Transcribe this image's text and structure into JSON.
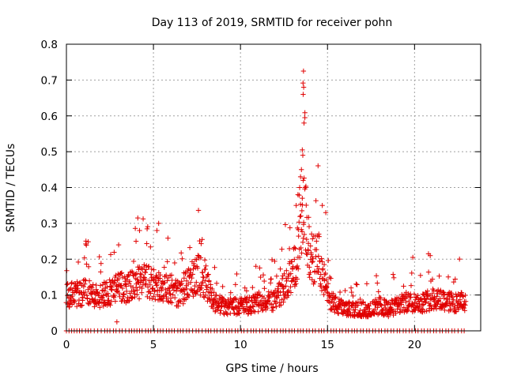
{
  "chart_data": {
    "type": "scatter",
    "title": "Day 113 of 2019, SRMTID for receiver pohn",
    "xlabel": "GPS time / hours",
    "ylabel": "SRMTID / TECUs",
    "xlim": [
      0,
      23.8
    ],
    "ylim": [
      0,
      0.8
    ],
    "x_ticks": [
      0,
      5,
      10,
      15,
      20
    ],
    "x_tick_labels": [
      "0",
      "5",
      "10",
      "15",
      "20"
    ],
    "y_ticks": [
      0,
      0.1,
      0.2,
      0.3,
      0.4,
      0.5,
      0.6,
      0.7,
      0.8
    ],
    "y_tick_labels": [
      "0",
      "0.1",
      "0.2",
      "0.3",
      "0.4",
      "0.5",
      "0.6",
      "0.7",
      "0.8"
    ],
    "grid": true,
    "marker": "+",
    "marker_color": "#e00000",
    "series": [
      {
        "name": "SRMTID",
        "profile_x": [
          0,
          0.5,
          1,
          1.5,
          2,
          2.5,
          3,
          3.5,
          4,
          4.5,
          5,
          5.5,
          6,
          6.5,
          7,
          7.5,
          8,
          8.5,
          9,
          9.5,
          10,
          10.5,
          11,
          11.5,
          12,
          12.5,
          13,
          13.3,
          13.5,
          13.7,
          14,
          14.5,
          15,
          15.5,
          16,
          16.5,
          17,
          17.5,
          18,
          18.5,
          19,
          19.5,
          20,
          20.5,
          21,
          21.5,
          22,
          22.5,
          22.9
        ],
        "profile_y": [
          0.1,
          0.1,
          0.11,
          0.1,
          0.1,
          0.11,
          0.12,
          0.12,
          0.13,
          0.14,
          0.13,
          0.12,
          0.12,
          0.1,
          0.13,
          0.16,
          0.14,
          0.08,
          0.07,
          0.07,
          0.07,
          0.07,
          0.08,
          0.08,
          0.09,
          0.12,
          0.16,
          0.22,
          0.28,
          0.33,
          0.2,
          0.2,
          0.1,
          0.07,
          0.06,
          0.06,
          0.06,
          0.06,
          0.07,
          0.06,
          0.07,
          0.08,
          0.08,
          0.08,
          0.09,
          0.09,
          0.08,
          0.08,
          0.08
        ],
        "highlight_points": [
          [
            13.62,
            0.725
          ],
          [
            13.63,
            0.68
          ],
          [
            13.6,
            0.66
          ],
          [
            13.7,
            0.595
          ],
          [
            13.65,
            0.58
          ],
          [
            13.55,
            0.505
          ],
          [
            13.58,
            0.49
          ],
          [
            13.5,
            0.45
          ],
          [
            13.45,
            0.43
          ],
          [
            13.6,
            0.42
          ],
          [
            13.4,
            0.4
          ],
          [
            13.3,
            0.38
          ],
          [
            13.55,
            0.37
          ],
          [
            13.2,
            0.35
          ],
          [
            4.1,
            0.315
          ],
          [
            4.2,
            0.28
          ],
          [
            5.3,
            0.3
          ],
          [
            5.2,
            0.28
          ],
          [
            14.7,
            0.35
          ],
          [
            14.9,
            0.33
          ],
          [
            7.8,
            0.255
          ],
          [
            4.0,
            0.25
          ],
          [
            14.5,
            0.27
          ],
          [
            20.8,
            0.215
          ],
          [
            20.9,
            0.21
          ],
          [
            3.0,
            0.24
          ],
          [
            19.9,
            0.205
          ],
          [
            2.9,
            0.025
          ]
        ]
      }
    ],
    "zero_points": [
      0.0,
      0.15,
      0.3,
      0.45,
      0.6,
      0.75,
      0.9,
      1.1,
      1.25,
      1.4,
      1.6,
      1.8,
      2.0,
      2.2,
      2.35,
      2.5,
      2.7,
      2.85,
      3.05,
      3.2,
      3.4,
      3.6,
      3.75,
      3.9,
      4.05,
      4.2,
      4.35,
      4.55,
      4.7,
      4.85,
      5.05,
      5.25,
      5.4,
      5.55,
      5.75,
      5.9,
      6.05,
      6.2,
      6.4,
      6.55,
      6.7,
      6.9,
      7.05,
      7.25,
      7.45,
      7.6,
      7.8,
      8.0,
      8.15,
      8.3,
      8.5,
      8.65,
      8.85,
      9.0,
      9.2,
      9.35,
      9.5,
      9.7,
      9.85,
      10.05,
      10.2,
      10.4,
      10.6,
      10.75,
      10.9,
      11.1,
      11.25,
      11.45,
      11.6,
      11.8,
      11.95,
      12.1,
      12.3,
      12.45,
      12.6,
      12.8,
      12.95,
      13.1,
      13.3,
      13.45,
      13.6,
      13.8,
      13.95,
      14.15,
      14.3,
      14.5,
      14.65,
      14.8,
      15.0,
      15.2,
      15.35,
      15.5,
      15.7,
      15.85,
      16.05,
      16.2,
      16.4,
      16.55,
      16.7,
      16.9,
      17.05,
      17.25,
      17.4,
      17.6,
      17.75,
      17.95,
      18.1,
      18.3,
      18.45,
      18.65,
      18.8,
      19.0,
      19.15,
      19.35,
      19.5,
      19.7,
      19.85,
      20.05,
      20.2,
      20.4,
      20.55,
      20.75,
      20.9,
      21.1,
      21.25,
      21.45,
      21.6,
      21.8,
      21.95,
      22.15,
      22.3,
      22.5,
      22.7,
      22.85
    ],
    "x_range_data": [
      0,
      22.95
    ]
  }
}
